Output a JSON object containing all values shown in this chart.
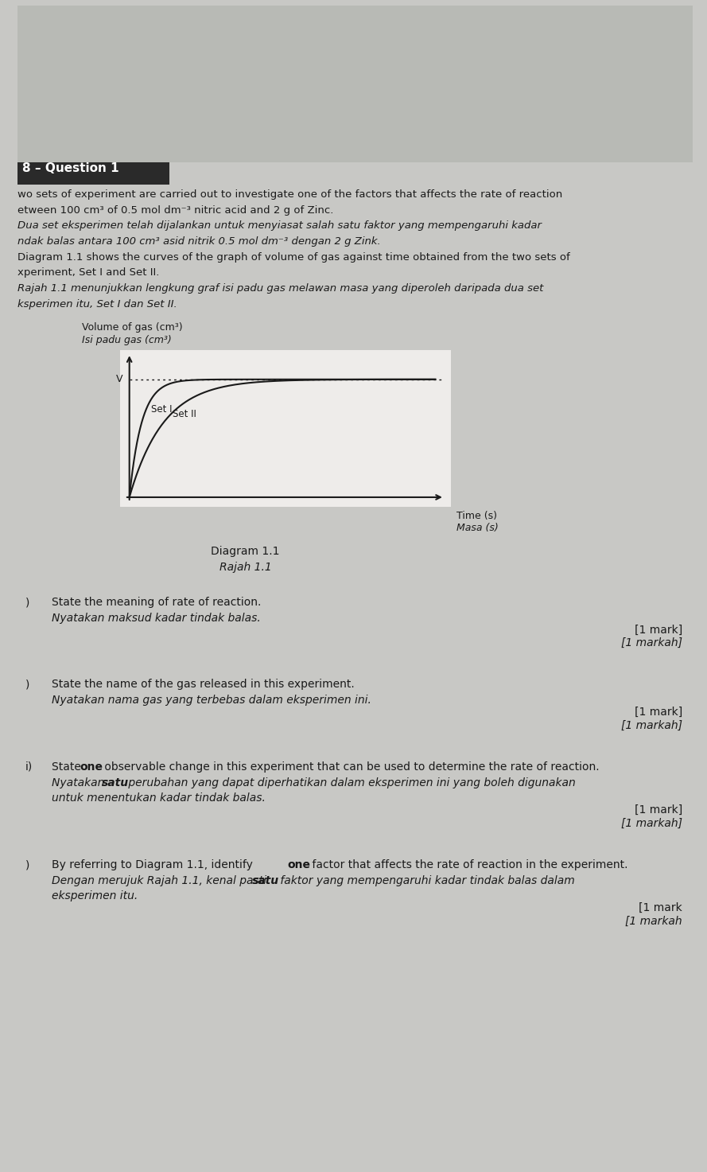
{
  "bg_color": "#c8c8c5",
  "page_bg": "#eeecea",
  "header_text": "8 – Question 1",
  "intro_lines": [
    [
      "wo sets of experiment are carried out to investigate one of the factors that affects the rate of reaction",
      "normal"
    ],
    [
      "etween 100 cm³ of 0.5 mol dm⁻³ nitric acid and 2 g of Zinc.",
      "normal"
    ],
    [
      "Dua set eksperimen telah dijalankan untuk menyiasat salah satu faktor yang mempengaruhi kadar",
      "italic"
    ],
    [
      "ndak balas antara 100 cm³ asid nitrik 0.5 mol dm⁻³ dengan 2 g Zink.",
      "italic"
    ],
    [
      "Diagram 1.1 shows the curves of the graph of volume of gas against time obtained from the two sets of",
      "normal"
    ],
    [
      "xperiment, Set I and Set II.",
      "normal"
    ],
    [
      "Rajah 1.1 menunjukkan lengkung graf isi padu gas melawan masa yang diperoleh daripada dua set",
      "italic"
    ],
    [
      "ksperimen itu, Set I dan Set II.",
      "italic"
    ]
  ],
  "graph_ylabel_en": "Volume of gas (cm³)",
  "graph_ylabel_ms": "Isi padu gas (cm³)",
  "graph_xlabel_en": "Time (s)",
  "graph_xlabel_ms": "Masa (s)",
  "diagram_label_en": "Diagram 1.1",
  "diagram_label_ms": "Rajah 1.1",
  "q1_prefix": ")",
  "q1_en": "State the meaning of rate of reaction.",
  "q1_ms": "Nyatakan maksud kadar tindak balas.",
  "q1_mark_en": "[1 mark]",
  "q1_mark_ms": "[1 markah]",
  "q2_prefix": ")",
  "q2_en": "State the name of the gas released in this experiment.",
  "q2_ms": "Nyatakan nama gas yang terbebas dalam eksperimen ini.",
  "q2_mark_en": "[1 mark]",
  "q2_mark_ms": "[1 markah]",
  "q3_prefix": "i)",
  "q3_en_a": "State ",
  "q3_en_b": "one",
  "q3_en_c": " observable change in this experiment that can be used to determine the rate of reaction.",
  "q3_ms_a": "Nyatakan ",
  "q3_ms_b": "satu",
  "q3_ms_c": " perubahan yang dapat diperhatikan dalam eksperimen ini yang boleh digunakan",
  "q3_ms_d": "untuk menentukan kadar tindak balas.",
  "q3_mark_en": "[1 mark]",
  "q3_mark_ms": "[1 markah]",
  "q4_prefix": ")",
  "q4_en_a": "By referring to Diagram 1.1, identify ",
  "q4_en_b": "one",
  "q4_en_c": " factor that affects the rate of reaction in the experiment.",
  "q4_ms_a": "Dengan merujuk Rajah 1.1, kenal pasti ",
  "q4_ms_b": "satu",
  "q4_ms_c": " faktor yang mempengaruhi kadar tindak balas dalam",
  "q4_ms_d": "eksperimen itu.",
  "q4_mark_en": "[1 mark",
  "q4_mark_ms": "[1 markah"
}
